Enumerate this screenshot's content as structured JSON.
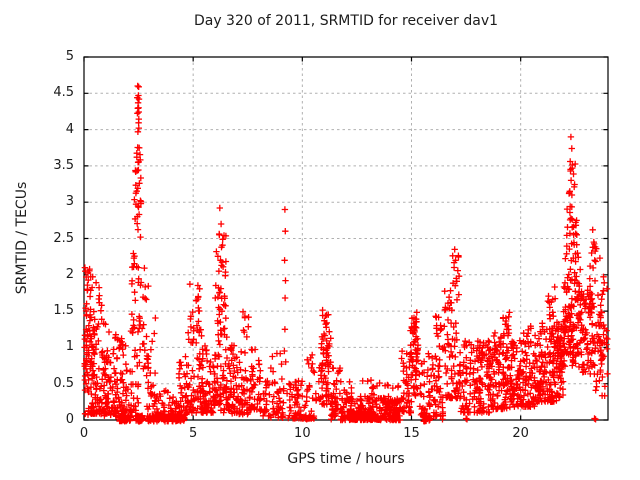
{
  "window": {
    "background": "#ffffff"
  },
  "chart_data": {
    "type": "scatter",
    "title": "Day 320 of 2011, SRMTID for receiver dav1",
    "xlabel": "GPS time / hours",
    "ylabel": "SRMTID / TECUs",
    "xlim": [
      0,
      24
    ],
    "ylim": [
      0,
      5
    ],
    "xtick_labels": [
      "0",
      "5",
      "10",
      "15",
      "20"
    ],
    "ytick_labels": [
      "0",
      "0.5",
      "1",
      "1.5",
      "2",
      "2.5",
      "3",
      "3.5",
      "4",
      "4.5",
      "5"
    ],
    "grid": "dashed, at every labeled tick",
    "legend": "none",
    "marker": "plus",
    "colors": {
      "marker": "#ff0000",
      "grid": "#b0b0b0",
      "axis": "#000000",
      "text": "#1c1c1c"
    },
    "seed": 1320,
    "clusters_schema": [
      "x_start_hour",
      "x_end_hour",
      "count",
      "y_min_TECU",
      "y_max_TECU",
      "shape: u=uniform, b=bottom-weighted"
    ],
    "clusters": [
      [
        0.02,
        0.5,
        55,
        0.35,
        2.1,
        "u"
      ],
      [
        0.05,
        0.45,
        25,
        0.55,
        1.25,
        "u"
      ],
      [
        0.0,
        1.5,
        40,
        0.05,
        0.6,
        "b"
      ],
      [
        0.3,
        1.15,
        85,
        0.08,
        1.35,
        "b"
      ],
      [
        0.5,
        0.95,
        8,
        1.35,
        1.9,
        "u"
      ],
      [
        1.0,
        1.95,
        65,
        0.05,
        1.05,
        "b"
      ],
      [
        1.35,
        1.95,
        12,
        0.85,
        1.5,
        "u"
      ],
      [
        1.6,
        2.15,
        55,
        -0.02,
        0.06,
        "u"
      ],
      [
        2.35,
        2.7,
        40,
        -0.02,
        0.06,
        "u"
      ],
      [
        2.9,
        4.65,
        130,
        -0.02,
        0.06,
        "u"
      ],
      [
        1.9,
        2.5,
        30,
        0.1,
        1.2,
        "b"
      ],
      [
        2.05,
        2.5,
        22,
        1.2,
        2.35,
        "u"
      ],
      [
        2.3,
        2.62,
        20,
        2.4,
        3.35,
        "u"
      ],
      [
        2.35,
        2.58,
        9,
        3.4,
        3.8,
        "u"
      ],
      [
        2.42,
        2.6,
        7,
        3.95,
        4.62,
        "u"
      ],
      [
        2.5,
        2.95,
        28,
        0.7,
        2.1,
        "b"
      ],
      [
        2.8,
        3.35,
        26,
        0.15,
        1.45,
        "b"
      ],
      [
        3.2,
        4.7,
        70,
        0.03,
        0.42,
        "b"
      ],
      [
        4.35,
        4.75,
        14,
        0.3,
        0.95,
        "u"
      ],
      [
        4.7,
        5.45,
        75,
        0.1,
        1.45,
        "b"
      ],
      [
        4.85,
        5.3,
        12,
        1.3,
        1.9,
        "u"
      ],
      [
        5.4,
        5.95,
        45,
        0.1,
        1.05,
        "b"
      ],
      [
        5.0,
        8.0,
        60,
        0.1,
        0.7,
        "b"
      ],
      [
        5.9,
        6.6,
        80,
        0.2,
        1.95,
        "b"
      ],
      [
        6.05,
        6.5,
        13,
        1.95,
        2.6,
        "u"
      ],
      [
        6.6,
        7.6,
        70,
        0.08,
        1.05,
        "b"
      ],
      [
        7.2,
        7.55,
        8,
        1.05,
        1.5,
        "u"
      ],
      [
        7.6,
        8.2,
        45,
        0.12,
        1.0,
        "b"
      ],
      [
        8.2,
        9.15,
        55,
        0.03,
        0.6,
        "b"
      ],
      [
        8.5,
        9.05,
        6,
        0.6,
        0.95,
        "u"
      ],
      [
        9.3,
        10.65,
        80,
        0.02,
        0.55,
        "b"
      ],
      [
        10.2,
        10.55,
        8,
        0.55,
        0.9,
        "u"
      ],
      [
        10.75,
        11.3,
        65,
        0.2,
        1.3,
        "u"
      ],
      [
        10.9,
        11.2,
        8,
        1.3,
        1.52,
        "u"
      ],
      [
        11.3,
        11.85,
        45,
        0.05,
        0.75,
        "b"
      ],
      [
        11.75,
        14.5,
        220,
        0.0,
        0.3,
        "b"
      ],
      [
        12.1,
        13.4,
        80,
        0.0,
        0.12,
        "u"
      ],
      [
        13.8,
        14.35,
        45,
        0.0,
        0.25,
        "u"
      ],
      [
        11.9,
        14.45,
        35,
        0.28,
        0.55,
        "b"
      ],
      [
        14.5,
        15.0,
        45,
        0.1,
        1.0,
        "b"
      ],
      [
        14.95,
        15.3,
        55,
        0.3,
        1.3,
        "u"
      ],
      [
        15.0,
        15.28,
        8,
        1.3,
        1.55,
        "u"
      ],
      [
        15.3,
        16.45,
        80,
        0.05,
        0.95,
        "b"
      ],
      [
        15.55,
        15.85,
        20,
        -0.02,
        0.06,
        "u"
      ],
      [
        16.1,
        16.45,
        18,
        0.5,
        1.45,
        "u"
      ],
      [
        16.5,
        17.25,
        80,
        0.3,
        1.8,
        "b"
      ],
      [
        16.85,
        17.18,
        8,
        1.8,
        2.35,
        "u"
      ],
      [
        17.25,
        18.6,
        115,
        0.1,
        1.1,
        "b"
      ],
      [
        18.05,
        18.5,
        15,
        0.7,
        1.15,
        "u"
      ],
      [
        18.0,
        21.0,
        60,
        0.4,
        1.1,
        "u"
      ],
      [
        18.6,
        19.6,
        100,
        0.15,
        1.2,
        "b"
      ],
      [
        19.15,
        19.5,
        10,
        1.15,
        1.5,
        "u"
      ],
      [
        19.6,
        20.65,
        100,
        0.18,
        1.15,
        "b"
      ],
      [
        20.0,
        20.5,
        6,
        1.15,
        1.45,
        "u"
      ],
      [
        20.65,
        21.65,
        110,
        0.25,
        1.35,
        "b"
      ],
      [
        21.2,
        21.6,
        12,
        1.35,
        1.85,
        "u"
      ],
      [
        21.0,
        22.0,
        40,
        0.5,
        1.3,
        "u"
      ],
      [
        21.65,
        22.05,
        55,
        0.3,
        1.35,
        "u"
      ],
      [
        21.95,
        22.75,
        110,
        0.75,
        2.3,
        "u"
      ],
      [
        22.1,
        22.6,
        24,
        2.3,
        3.0,
        "u"
      ],
      [
        22.2,
        22.5,
        10,
        3.0,
        3.6,
        "u"
      ],
      [
        22.6,
        23.35,
        85,
        0.6,
        1.85,
        "u"
      ],
      [
        23.15,
        23.65,
        12,
        1.8,
        2.45,
        "u"
      ],
      [
        23.35,
        24.0,
        60,
        0.3,
        1.75,
        "u"
      ],
      [
        23.7,
        23.98,
        6,
        1.7,
        2.0,
        "u"
      ]
    ],
    "points_schema": [
      "x_hour",
      "y_TECU"
    ],
    "points": [
      [
        2.46,
        4.6
      ],
      [
        2.49,
        4.47
      ],
      [
        2.44,
        4.44
      ],
      [
        2.52,
        4.42
      ],
      [
        2.5,
        4.3
      ],
      [
        2.47,
        3.97
      ],
      [
        2.51,
        4.02
      ],
      [
        2.42,
        3.62
      ],
      [
        2.48,
        3.55
      ],
      [
        2.53,
        3.75
      ],
      [
        6.22,
        2.92
      ],
      [
        6.28,
        2.7
      ],
      [
        6.2,
        2.55
      ],
      [
        6.3,
        2.38
      ],
      [
        6.25,
        2.2
      ],
      [
        6.18,
        2.05
      ],
      [
        9.2,
        2.9
      ],
      [
        9.22,
        2.6
      ],
      [
        9.19,
        2.2
      ],
      [
        9.23,
        1.92
      ],
      [
        9.21,
        1.68
      ],
      [
        9.2,
        1.25
      ],
      [
        9.18,
        0.95
      ],
      [
        9.24,
        0.8
      ],
      [
        16.98,
        2.35
      ],
      [
        17.02,
        2.2
      ],
      [
        16.95,
        2.1
      ],
      [
        17.05,
        1.95
      ],
      [
        17.0,
        1.85
      ],
      [
        22.3,
        3.9
      ],
      [
        22.34,
        3.74
      ],
      [
        22.27,
        3.56
      ],
      [
        22.36,
        3.47
      ],
      [
        22.31,
        3.3
      ],
      [
        22.25,
        3.15
      ],
      [
        23.3,
        2.62
      ],
      [
        23.35,
        2.45
      ],
      [
        23.25,
        2.3
      ],
      [
        10.15,
        0.02
      ],
      [
        10.2,
        0.01
      ],
      [
        11.32,
        0.01
      ],
      [
        12.35,
        0.01
      ],
      [
        13.1,
        0.01
      ],
      [
        14.2,
        0.02
      ],
      [
        16.42,
        0.01
      ],
      [
        17.5,
        0.02
      ],
      [
        17.54,
        0.01
      ],
      [
        23.38,
        0.02
      ],
      [
        23.43,
        0.01
      ],
      [
        0.06,
        2.05
      ],
      [
        0.1,
        1.97
      ]
    ]
  }
}
